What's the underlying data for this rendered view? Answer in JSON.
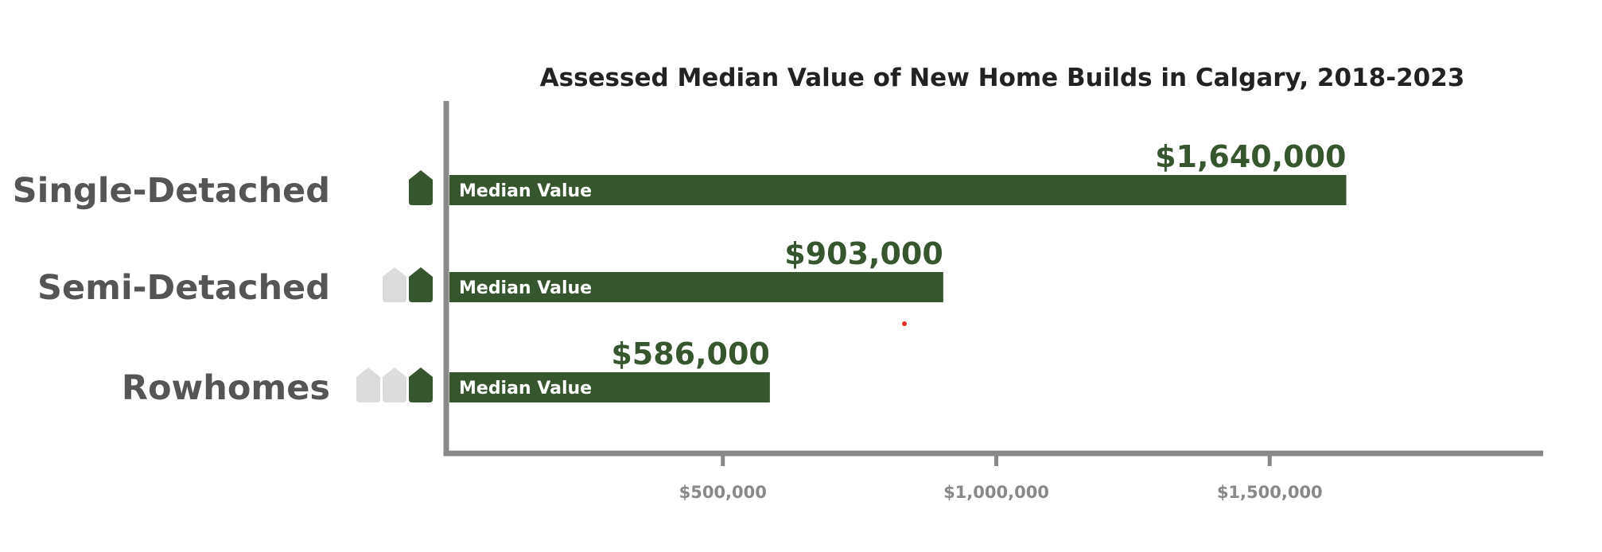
{
  "chart_data": {
    "type": "bar",
    "orientation": "horizontal",
    "title": "Assessed Median Value of New Home Builds in Calgary, 2018-2023",
    "categories": [
      "Single-Detached",
      "Semi-Detached",
      "Rowhomes"
    ],
    "values": [
      1640000,
      903000,
      586000
    ],
    "value_labels": [
      "$1,640,000",
      "$903,000",
      "$586,000"
    ],
    "bar_label": "Median Value",
    "xlim": [
      0,
      2000000
    ],
    "xticks": [
      500000,
      1000000,
      1500000
    ],
    "xtick_labels": [
      "$500,000",
      "$1,000,000",
      "$1,500,000"
    ],
    "category_icons": [
      {
        "grey": 0,
        "green": 1
      },
      {
        "grey": 1,
        "green": 1
      },
      {
        "grey": 2,
        "green": 1
      }
    ],
    "grid": false,
    "legend": "none"
  },
  "colors": {
    "bar": "#37552f",
    "value_label": "#37552f",
    "axis": "#888888",
    "icon_grey": "#dcdcdc",
    "icon_green": "#37552f",
    "category_label": "#555555",
    "title": "#222222"
  }
}
